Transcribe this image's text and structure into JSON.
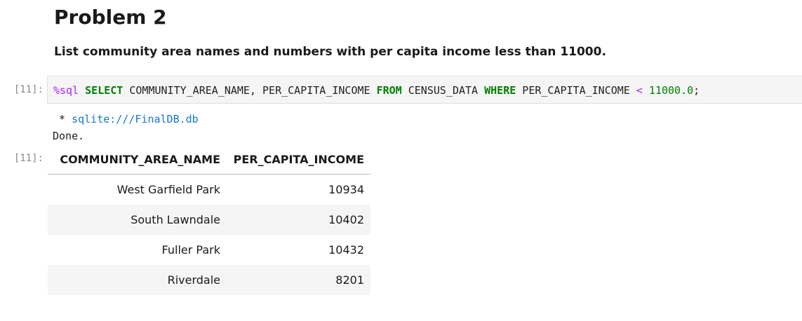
{
  "markdown": {
    "heading": "Problem 2",
    "description": "List community area names and numbers with per capita income less than 11000."
  },
  "code_cell": {
    "input_prompt": "[11]:",
    "magic": "%sql",
    "tokens": {
      "t1": "SELECT",
      "t2": " COMMUNITY_AREA_NAME, PER_CAPITA_INCOME ",
      "t3": "FROM",
      "t4": " CENSUS_DATA ",
      "t5": "WHERE",
      "t6": " PER_CAPITA_INCOME ",
      "t7": "<",
      "t8": " ",
      "t9": "11000.0",
      "t10": ";"
    }
  },
  "stream_output": {
    "bullet": " * ",
    "connection": "sqlite:///FinalDB.db",
    "status": "Done."
  },
  "result": {
    "output_prompt": "[11]:",
    "columns": [
      "COMMUNITY_AREA_NAME",
      "PER_CAPITA_INCOME"
    ],
    "rows": [
      [
        "West Garfield Park",
        "10934"
      ],
      [
        "South Lawndale",
        "10402"
      ],
      [
        "Fuller Park",
        "10432"
      ],
      [
        "Riverdale",
        "8201"
      ]
    ]
  }
}
